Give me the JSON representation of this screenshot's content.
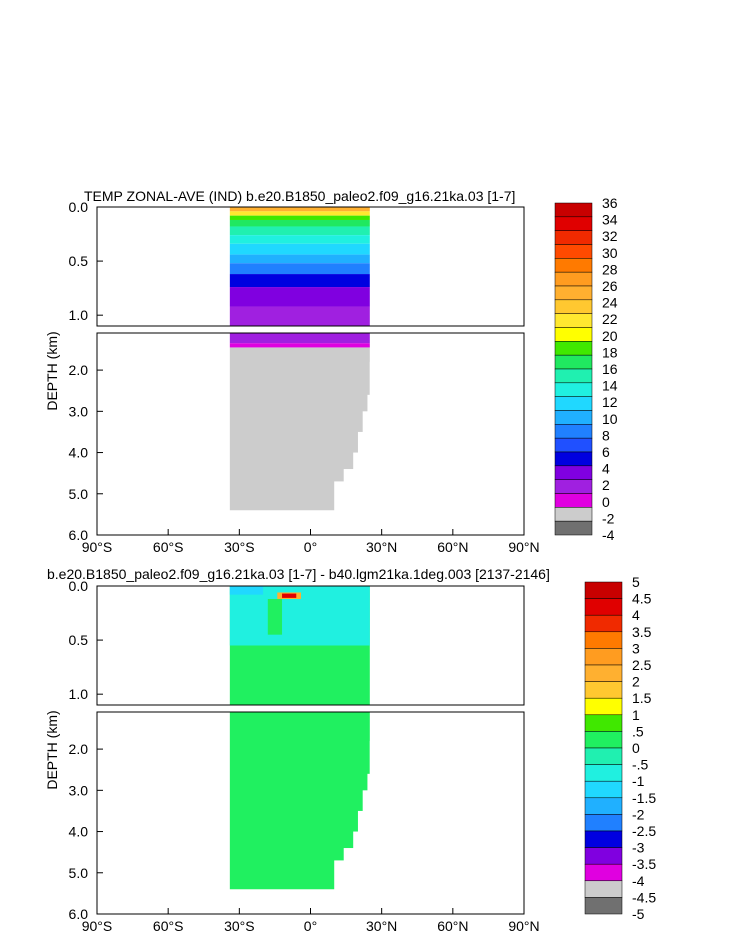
{
  "chart_data": [
    {
      "type": "heatmap",
      "title": "TEMP ZONAL-AVE (IND) b.e20.B1850_paleo2.f09_g16.21ka.03 [1-7]",
      "ylabel": "DEPTH (km)",
      "xlabel": "",
      "x_tick_labels": [
        "90°S",
        "60°S",
        "30°S",
        "0°",
        "30°N",
        "60°N",
        "90°N"
      ],
      "x_ticks": [
        -90,
        -60,
        -30,
        0,
        30,
        60,
        90
      ],
      "xlim": [
        -90,
        90
      ],
      "upper_panel_ylim": [
        0,
        1.1
      ],
      "upper_tick_labels": [
        "0.0",
        "0.5",
        "1.0"
      ],
      "upper_ticks": [
        0,
        0.5,
        1.0
      ],
      "lower_panel_ylim": [
        1.1,
        6.0
      ],
      "lower_tick_labels": [
        "2.0",
        "3.0",
        "4.0",
        "5.0",
        "6.0"
      ],
      "lower_ticks": [
        2.0,
        3.0,
        4.0,
        5.0,
        6.0
      ],
      "colorbar_labels": [
        "36",
        "34",
        "32",
        "30",
        "28",
        "26",
        "24",
        "22",
        "20",
        "18",
        "16",
        "14",
        "12",
        "10",
        "8",
        "6",
        "4",
        "2",
        "0",
        "-2",
        "-4"
      ],
      "colorbar_colors": [
        "#c80000",
        "#e00000",
        "#f02a00",
        "#ff4a00",
        "#ff7a00",
        "#ff9c20",
        "#ffb030",
        "#ffc830",
        "#ffe830",
        "#ffff00",
        "#40e800",
        "#20e860",
        "#20f0b0",
        "#20f0e0",
        "#20d8ff",
        "#20b0ff",
        "#2080ff",
        "#2050ff",
        "#0000e0",
        "#8000e0",
        "#a020e0",
        "#e000e0",
        "#cccccc",
        "#707070"
      ],
      "data_extent": {
        "lat_min": -34,
        "lat_max": 25,
        "bottom_depth": 5.4
      },
      "layers": [
        {
          "top": 0.0,
          "bottom": 0.04,
          "color": "#ffb030"
        },
        {
          "top": 0.04,
          "bottom": 0.08,
          "color": "#ffe830"
        },
        {
          "top": 0.08,
          "bottom": 0.12,
          "color": "#40e800"
        },
        {
          "top": 0.12,
          "bottom": 0.18,
          "color": "#20e860"
        },
        {
          "top": 0.18,
          "bottom": 0.26,
          "color": "#20f0b0"
        },
        {
          "top": 0.26,
          "bottom": 0.34,
          "color": "#20f0e0"
        },
        {
          "top": 0.34,
          "bottom": 0.44,
          "color": "#20d8ff"
        },
        {
          "top": 0.44,
          "bottom": 0.52,
          "color": "#20b0ff"
        },
        {
          "top": 0.52,
          "bottom": 0.62,
          "color": "#2080ff"
        },
        {
          "top": 0.62,
          "bottom": 0.74,
          "color": "#0000e0"
        },
        {
          "top": 0.74,
          "bottom": 0.92,
          "color": "#8000e0"
        },
        {
          "top": 0.92,
          "bottom": 1.35,
          "color": "#a020e0"
        },
        {
          "top": 1.35,
          "bottom": 1.45,
          "color": "#e000e0"
        }
      ],
      "ground_color": "#cccccc"
    },
    {
      "type": "heatmap",
      "title": "b.e20.B1850_paleo2.f09_g16.21ka.03 [1-7] - b40.lgm21ka.1deg.003 [2137-2146]",
      "ylabel": "DEPTH (km)",
      "xlabel": "",
      "x_tick_labels": [
        "90°S",
        "60°S",
        "30°S",
        "0°",
        "30°N",
        "60°N",
        "90°N"
      ],
      "x_ticks": [
        -90,
        -60,
        -30,
        0,
        30,
        60,
        90
      ],
      "xlim": [
        -90,
        90
      ],
      "upper_panel_ylim": [
        0,
        1.1
      ],
      "upper_tick_labels": [
        "0.0",
        "0.5",
        "1.0"
      ],
      "upper_ticks": [
        0,
        0.5,
        1.0
      ],
      "lower_panel_ylim": [
        1.1,
        6.0
      ],
      "lower_tick_labels": [
        "2.0",
        "3.0",
        "4.0",
        "5.0",
        "6.0"
      ],
      "lower_ticks": [
        2.0,
        3.0,
        4.0,
        5.0,
        6.0
      ],
      "colorbar_labels": [
        "5",
        "4.5",
        "4",
        "3.5",
        "3",
        "2.5",
        "2",
        "1.5",
        "1",
        ".5",
        "0",
        "-.5",
        "-1",
        "-1.5",
        "-2",
        "-2.5",
        "-3",
        "-3.5",
        "-4",
        "-4.5",
        "-5"
      ],
      "colorbar_colors": [
        "#c80000",
        "#e00000",
        "#f02a00",
        "#ff7a00",
        "#ff9c20",
        "#ffb030",
        "#ffc830",
        "#ffff00",
        "#40e800",
        "#20f060",
        "#20f0b0",
        "#20f0e0",
        "#20d8ff",
        "#20b0ff",
        "#2080ff",
        "#0000e0",
        "#8000e0",
        "#e000e0",
        "#cccccc",
        "#707070"
      ],
      "data_extent": {
        "lat_min": -34,
        "lat_max": 25,
        "bottom_depth": 5.4
      },
      "background_color": "#20f060",
      "anomaly_patches": [
        {
          "lat_min": -34,
          "lat_max": 25,
          "top": 0.0,
          "bottom": 0.55,
          "color": "#20f0e0"
        },
        {
          "lat_min": -34,
          "lat_max": -20,
          "top": 0.0,
          "bottom": 0.08,
          "color": "#20d8ff"
        },
        {
          "lat_min": -14,
          "lat_max": -4,
          "top": 0.06,
          "bottom": 0.12,
          "color": "#ffb030"
        },
        {
          "lat_min": -12,
          "lat_max": -6,
          "top": 0.07,
          "bottom": 0.11,
          "color": "#e00000"
        },
        {
          "lat_min": -18,
          "lat_max": -12,
          "top": 0.12,
          "bottom": 0.45,
          "color": "#20f060"
        }
      ]
    }
  ]
}
